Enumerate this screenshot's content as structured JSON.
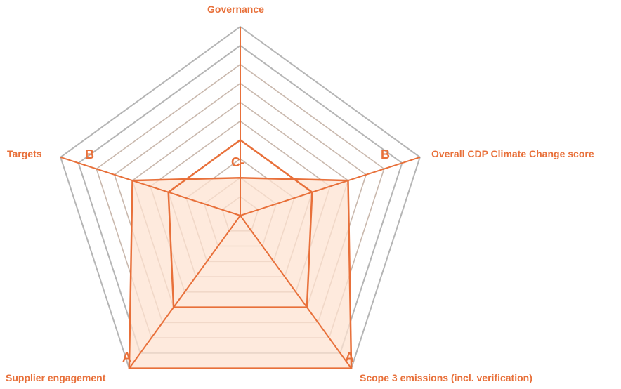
{
  "chart_data": {
    "type": "radar",
    "axes": [
      "Governance",
      "Overall CDP Climate Change score",
      "Scope 3 emissions (incl. verification)",
      "Supplier engagement",
      "Targets"
    ],
    "rings": 10,
    "series": [
      {
        "values": [
          2,
          6,
          10,
          10,
          6
        ]
      },
      {
        "values": [
          4,
          4,
          6,
          6,
          4
        ]
      }
    ],
    "score_labels": [
      "C-",
      "B",
      "A",
      "A",
      "B"
    ],
    "colors": {
      "accent": "#e8703a",
      "fill": "#fde3d2",
      "grid_outer": "#b5b5b5",
      "grid_inner": "#c9b8ad"
    }
  }
}
